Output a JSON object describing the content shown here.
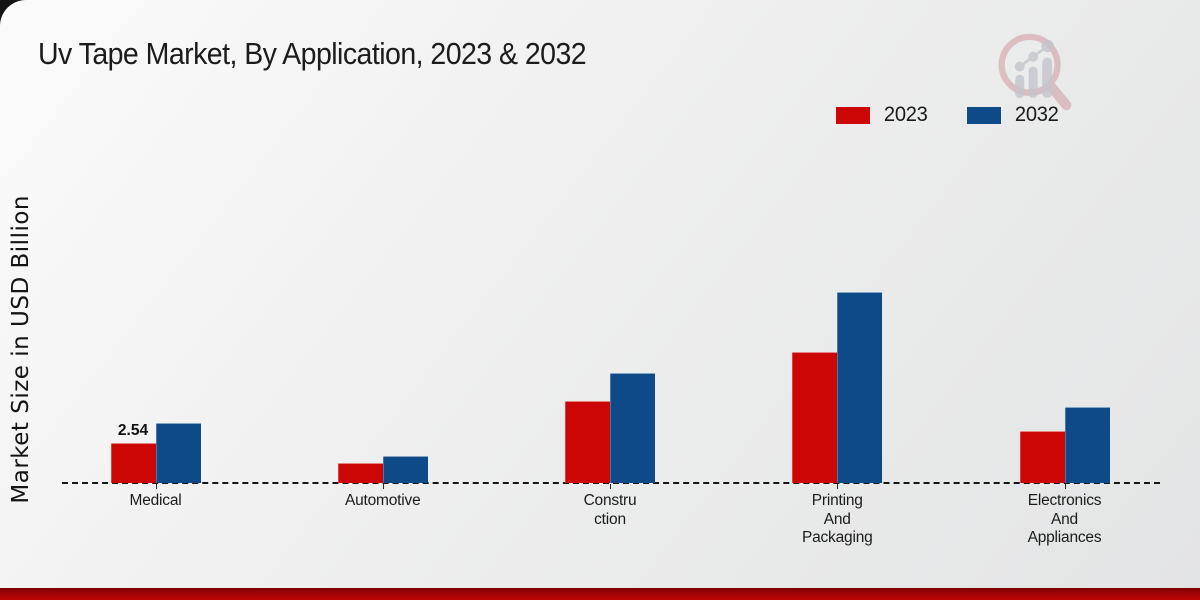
{
  "header": {
    "title": "Uv Tape Market, By Application, 2023 & 2032"
  },
  "y_axis": {
    "label": "Market Size in USD Billion"
  },
  "legend": {
    "items": [
      {
        "label": "2023",
        "color": "#cc0505"
      },
      {
        "label": "2032",
        "color": "#0d4a87"
      }
    ]
  },
  "watermark": {
    "icon": "magnifier-bar-chart-logo"
  },
  "colors": {
    "series_2023": "#cc0505",
    "series_2032": "#0d4a87",
    "bottom_strip": "#bd0404",
    "text": "#1a1a1a"
  },
  "chart_data": {
    "type": "bar",
    "title": "Uv Tape Market, By Application, 2023 & 2032",
    "xlabel": "",
    "ylabel": "Market Size in USD Billion",
    "categories": [
      "Medical",
      "Automotive",
      "Construction",
      "Printing And Packaging",
      "Electronics And Appliances"
    ],
    "categories_display": [
      [
        "Medical"
      ],
      [
        "Automotive"
      ],
      [
        "Constru",
        "ction"
      ],
      [
        "Printing",
        "And",
        "Packaging"
      ],
      [
        "Electronics",
        "And",
        "Appliances"
      ]
    ],
    "series": [
      {
        "name": "2023",
        "color": "#cc0505",
        "values": [
          2.54,
          1.3,
          5.2,
          8.3,
          3.3
        ]
      },
      {
        "name": "2032",
        "color": "#0d4a87",
        "values": [
          3.8,
          1.7,
          7.0,
          12.1,
          4.8
        ]
      }
    ],
    "data_labels": [
      {
        "series_index": 0,
        "category_index": 0,
        "text": "2.54"
      }
    ],
    "ylim": [
      0,
      12.5
    ],
    "grid": false,
    "legend_position": "top-right",
    "baseline_style": "dashed",
    "y_tick_labels_visible": false
  }
}
